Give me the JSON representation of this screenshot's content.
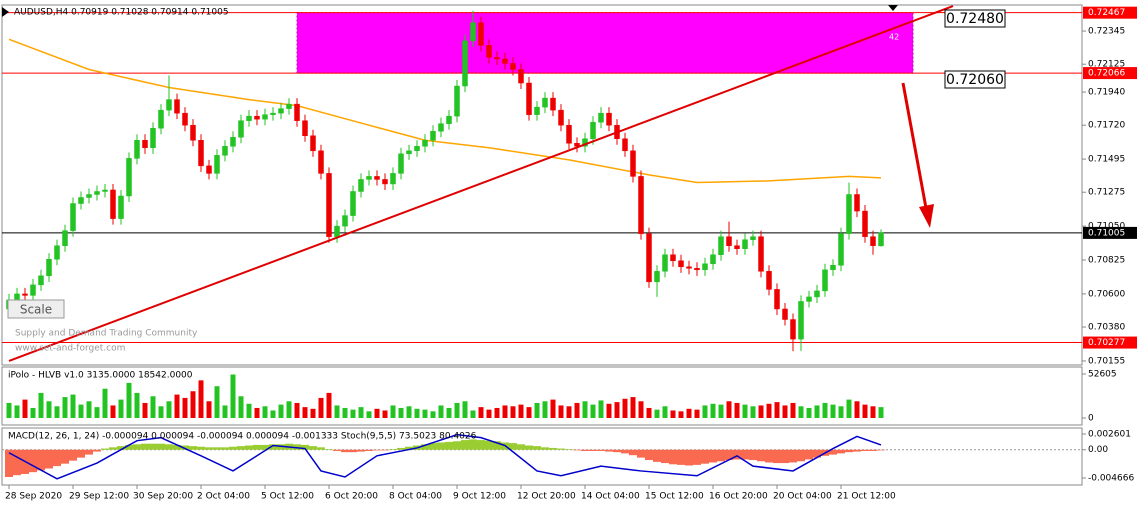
{
  "chart_data": {
    "type": "candlestick",
    "title": "AUDUSD,H4  0.70919 0.71028 0.70914 0.71005",
    "watermark": [
      "Supply and Demand Trading Community",
      "www.set-and-forget.com"
    ],
    "scale_button": "Scale",
    "up_color": "#22c322",
    "down_color": "#ee0000",
    "categories": [
      "28 Sep 2020",
      null,
      null,
      null,
      null,
      null,
      null,
      null,
      "29 Sep 12:00",
      null,
      null,
      null,
      null,
      null,
      null,
      null,
      "30 Sep 20:00",
      null,
      null,
      null,
      null,
      null,
      null,
      null,
      "2 Oct 04:00",
      null,
      null,
      null,
      null,
      null,
      null,
      null,
      "5 Oct 12:00",
      null,
      null,
      null,
      null,
      null,
      null,
      null,
      "6 Oct 20:00",
      null,
      null,
      null,
      null,
      null,
      null,
      null,
      "8 Oct 04:00",
      null,
      null,
      null,
      null,
      null,
      null,
      null,
      "9 Oct 12:00",
      null,
      null,
      null,
      null,
      null,
      null,
      null,
      "12 Oct 20:00",
      null,
      null,
      null,
      null,
      null,
      null,
      null,
      "14 Oct 04:00",
      null,
      null,
      null,
      null,
      null,
      null,
      null,
      "15 Oct 12:00",
      null,
      null,
      null,
      null,
      null,
      null,
      null,
      "16 Oct 20:00",
      null,
      null,
      null,
      null,
      null,
      null,
      null,
      "20 Oct 04:00",
      null,
      null,
      null,
      null,
      null,
      null,
      null,
      "21 Oct 12:00",
      null,
      null,
      null,
      null,
      null
    ],
    "ohlc": [
      [
        0.705,
        0.706,
        0.7046,
        0.7056
      ],
      [
        0.7056,
        0.7064,
        0.7052,
        0.706
      ],
      [
        0.706,
        0.7064,
        0.7055,
        0.7059
      ],
      [
        0.7059,
        0.707,
        0.7055,
        0.7066
      ],
      [
        0.7066,
        0.7076,
        0.7062,
        0.7072
      ],
      [
        0.7072,
        0.7087,
        0.7068,
        0.7083
      ],
      [
        0.7083,
        0.7096,
        0.7079,
        0.7092
      ],
      [
        0.7092,
        0.7106,
        0.7088,
        0.7102
      ],
      [
        0.7102,
        0.7124,
        0.7098,
        0.712
      ],
      [
        0.712,
        0.7128,
        0.7116,
        0.7124
      ],
      [
        0.7124,
        0.713,
        0.712,
        0.7126
      ],
      [
        0.7126,
        0.7132,
        0.7122,
        0.7128
      ],
      [
        0.7128,
        0.7133,
        0.7124,
        0.7129
      ],
      [
        0.7129,
        0.7133,
        0.7106,
        0.711
      ],
      [
        0.711,
        0.7129,
        0.7106,
        0.7125
      ],
      [
        0.7125,
        0.7154,
        0.7121,
        0.715
      ],
      [
        0.715,
        0.7166,
        0.7146,
        0.7162
      ],
      [
        0.7162,
        0.7166,
        0.7153,
        0.7157
      ],
      [
        0.7157,
        0.7174,
        0.7153,
        0.717
      ],
      [
        0.717,
        0.7186,
        0.7166,
        0.7182
      ],
      [
        0.7182,
        0.7205,
        0.7178,
        0.7189
      ],
      [
        0.7189,
        0.7193,
        0.7176,
        0.718
      ],
      [
        0.718,
        0.7184,
        0.7168,
        0.7172
      ],
      [
        0.7172,
        0.7176,
        0.7158,
        0.7162
      ],
      [
        0.7162,
        0.7166,
        0.7141,
        0.7145
      ],
      [
        0.7145,
        0.7149,
        0.7136,
        0.714
      ],
      [
        0.714,
        0.7156,
        0.7136,
        0.7152
      ],
      [
        0.7152,
        0.7162,
        0.7148,
        0.7158
      ],
      [
        0.7158,
        0.7168,
        0.7154,
        0.7164
      ],
      [
        0.7164,
        0.7179,
        0.716,
        0.7175
      ],
      [
        0.7175,
        0.7182,
        0.7171,
        0.7178
      ],
      [
        0.7178,
        0.7182,
        0.7172,
        0.7176
      ],
      [
        0.7176,
        0.7183,
        0.7172,
        0.7179
      ],
      [
        0.7179,
        0.7184,
        0.7175,
        0.718
      ],
      [
        0.718,
        0.7187,
        0.7176,
        0.7183
      ],
      [
        0.7183,
        0.719,
        0.7179,
        0.7186
      ],
      [
        0.7186,
        0.719,
        0.7171,
        0.7175
      ],
      [
        0.7175,
        0.7179,
        0.7161,
        0.7165
      ],
      [
        0.7165,
        0.7169,
        0.7151,
        0.7155
      ],
      [
        0.7155,
        0.7159,
        0.7136,
        0.714
      ],
      [
        0.714,
        0.7144,
        0.7094,
        0.7098
      ],
      [
        0.7098,
        0.7109,
        0.7094,
        0.7105
      ],
      [
        0.7105,
        0.7116,
        0.7101,
        0.7112
      ],
      [
        0.7112,
        0.7132,
        0.7108,
        0.7128
      ],
      [
        0.7128,
        0.714,
        0.7124,
        0.7136
      ],
      [
        0.7136,
        0.7142,
        0.7132,
        0.7138
      ],
      [
        0.7138,
        0.7142,
        0.7132,
        0.7136
      ],
      [
        0.7136,
        0.714,
        0.7129,
        0.7133
      ],
      [
        0.7133,
        0.7144,
        0.7129,
        0.714
      ],
      [
        0.714,
        0.7157,
        0.7136,
        0.7153
      ],
      [
        0.7153,
        0.7159,
        0.7149,
        0.7155
      ],
      [
        0.7155,
        0.7162,
        0.7151,
        0.7158
      ],
      [
        0.7158,
        0.7166,
        0.7154,
        0.7162
      ],
      [
        0.7162,
        0.7172,
        0.7158,
        0.7168
      ],
      [
        0.7168,
        0.7177,
        0.7164,
        0.7173
      ],
      [
        0.7173,
        0.7182,
        0.7169,
        0.7178
      ],
      [
        0.7178,
        0.7202,
        0.7174,
        0.7198
      ],
      [
        0.7198,
        0.7232,
        0.7194,
        0.7228
      ],
      [
        0.7228,
        0.7248,
        0.7224,
        0.724
      ],
      [
        0.724,
        0.7244,
        0.7221,
        0.7225
      ],
      [
        0.7225,
        0.7229,
        0.7213,
        0.7217
      ],
      [
        0.7217,
        0.7221,
        0.7212,
        0.7216
      ],
      [
        0.7216,
        0.722,
        0.7209,
        0.7213
      ],
      [
        0.7213,
        0.7217,
        0.7205,
        0.7209
      ],
      [
        0.7209,
        0.7213,
        0.7196,
        0.72
      ],
      [
        0.72,
        0.7204,
        0.7175,
        0.7179
      ],
      [
        0.7179,
        0.7188,
        0.7175,
        0.7184
      ],
      [
        0.7184,
        0.7194,
        0.718,
        0.719
      ],
      [
        0.719,
        0.7194,
        0.7178,
        0.7182
      ],
      [
        0.7182,
        0.7186,
        0.7168,
        0.7172
      ],
      [
        0.7172,
        0.7176,
        0.7156,
        0.716
      ],
      [
        0.716,
        0.7164,
        0.7154,
        0.7158
      ],
      [
        0.7158,
        0.7167,
        0.7154,
        0.7163
      ],
      [
        0.7163,
        0.7178,
        0.7159,
        0.7174
      ],
      [
        0.7174,
        0.7184,
        0.717,
        0.718
      ],
      [
        0.718,
        0.7184,
        0.7168,
        0.7172
      ],
      [
        0.7172,
        0.7176,
        0.7159,
        0.7163
      ],
      [
        0.7163,
        0.7167,
        0.7151,
        0.7155
      ],
      [
        0.7155,
        0.7159,
        0.7134,
        0.7138
      ],
      [
        0.7138,
        0.7142,
        0.7096,
        0.71
      ],
      [
        0.71,
        0.7104,
        0.7064,
        0.7068
      ],
      [
        0.7068,
        0.7079,
        0.7058,
        0.7075
      ],
      [
        0.7075,
        0.709,
        0.7071,
        0.7086
      ],
      [
        0.7086,
        0.709,
        0.7078,
        0.7082
      ],
      [
        0.7082,
        0.7086,
        0.7074,
        0.7078
      ],
      [
        0.7078,
        0.7082,
        0.7073,
        0.7077
      ],
      [
        0.7077,
        0.7081,
        0.7072,
        0.7076
      ],
      [
        0.7076,
        0.7084,
        0.7072,
        0.708
      ],
      [
        0.708,
        0.709,
        0.7076,
        0.7086
      ],
      [
        0.7086,
        0.7102,
        0.7082,
        0.7098
      ],
      [
        0.7098,
        0.7108,
        0.7088,
        0.7092
      ],
      [
        0.7092,
        0.7096,
        0.7086,
        0.709
      ],
      [
        0.709,
        0.71,
        0.7086,
        0.7096
      ],
      [
        0.7096,
        0.7102,
        0.7092,
        0.7098
      ],
      [
        0.7098,
        0.7102,
        0.7071,
        0.7075
      ],
      [
        0.7075,
        0.7079,
        0.7059,
        0.7063
      ],
      [
        0.7063,
        0.7067,
        0.7046,
        0.705
      ],
      [
        0.705,
        0.7054,
        0.7039,
        0.7043
      ],
      [
        0.7043,
        0.7047,
        0.7022,
        0.703
      ],
      [
        0.703,
        0.7059,
        0.7022,
        0.7055
      ],
      [
        0.7055,
        0.7062,
        0.7051,
        0.7058
      ],
      [
        0.7058,
        0.7066,
        0.7054,
        0.7062
      ],
      [
        0.7062,
        0.708,
        0.7058,
        0.7076
      ],
      [
        0.7076,
        0.7083,
        0.7072,
        0.7079
      ],
      [
        0.7079,
        0.7104,
        0.7075,
        0.71
      ],
      [
        0.71,
        0.7134,
        0.7096,
        0.7126
      ],
      [
        0.7126,
        0.713,
        0.7111,
        0.7115
      ],
      [
        0.7115,
        0.7119,
        0.7094,
        0.7098
      ],
      [
        0.7098,
        0.7102,
        0.7086,
        0.7092
      ],
      [
        0.70919,
        0.71028,
        0.70914,
        0.71005
      ]
    ],
    "ma": {
      "color": "#ffa500",
      "x": [
        0,
        10,
        20,
        30,
        36,
        45,
        52,
        60,
        70,
        80,
        86,
        95,
        105,
        109
      ],
      "values": [
        0.7229,
        0.7209,
        0.7197,
        0.7189,
        0.7185,
        0.7172,
        0.7162,
        0.7157,
        0.7149,
        0.7139,
        0.7134,
        0.7135,
        0.7138,
        0.7137
      ]
    },
    "ylim": [
      0.70128,
      0.72518
    ],
    "yticks": [
      0.72345,
      0.72125,
      {
        "value": 0.7194,
        "label": "0.71940"
      },
      {
        "value": 0.7172,
        "label": "0.71720"
      },
      0.71495,
      0.71275,
      {
        "value": 0.7105,
        "label": "0.71050"
      },
      0.70825,
      {
        "value": 0.706,
        "label": "0.70600"
      },
      {
        "value": 0.7038,
        "label": "0.70380"
      },
      0.70155
    ],
    "levels": [
      {
        "value": 0.72467,
        "color": "#ff0000"
      },
      {
        "value": 0.72066,
        "color": "#ff0000"
      },
      {
        "value": 0.71005,
        "color": "#000000"
      },
      {
        "value": 0.70277,
        "color": "#ff0000"
      }
    ],
    "zone": {
      "from": 36,
      "to": 113,
      "top": 0.72467,
      "bottom": 0.72066,
      "label": 42,
      "color": "#ff00ff"
    },
    "trend": {
      "color": "#e00000",
      "x": [
        0,
        118
      ],
      "values": [
        0.70155,
        0.72511
      ]
    },
    "annotations": [
      "0.72480",
      "0.72060"
    ],
    "volume": {
      "title": "iPolo - HLVB v1.0 3135.0000 18542.0000",
      "ylim": [
        -8369,
        60974
      ],
      "yticks": [
        52605,
        0
      ],
      "values": [
        18000,
        15000,
        22000,
        12000,
        30000,
        20000,
        14000,
        25000,
        28000,
        16000,
        20000,
        13000,
        35000,
        15000,
        22000,
        42000,
        30000,
        18000,
        26000,
        14000,
        20000,
        28000,
        24000,
        32000,
        45000,
        20000,
        38000,
        15000,
        52000,
        26000,
        17000,
        12000,
        14000,
        9000,
        16000,
        20000,
        18000,
        13000,
        11000,
        24000,
        30000,
        15000,
        12000,
        10000,
        13000,
        8000,
        11000,
        9000,
        15000,
        12000,
        14000,
        11000,
        10000,
        8000,
        15000,
        12000,
        18000,
        20000,
        9000,
        13000,
        10000,
        12000,
        15000,
        14000,
        16000,
        13000,
        18000,
        20000,
        22000,
        15000,
        14000,
        18000,
        20000,
        16000,
        21000,
        17000,
        19000,
        23000,
        25000,
        20000,
        12000,
        10000,
        14000,
        9000,
        8000,
        11000,
        10000,
        15000,
        17000,
        16000,
        20000,
        18000,
        16000,
        14000,
        15000,
        17000,
        19000,
        15000,
        18000,
        14000,
        12000,
        15000,
        18000,
        16000,
        14000,
        22000,
        20000,
        16000,
        14000,
        13000
      ]
    },
    "macd": {
      "title": "MACD(12, 26, 1, 24) -0.000094 0.000094 -0.000094 0.000094 -0.001333  Stoch(9,5,5) 73.5023 80.4026",
      "ylim": [
        -0.005822,
        0.003592
      ],
      "yticks": [
        0.002601,
        {
          "value": 0,
          "label": "0.00"
        },
        -0.004666
      ],
      "pos_color": "#9acd32",
      "neg_color": "#fa6a50",
      "line_color": "#0000cc",
      "values": [
        -0.0045,
        -0.0042,
        -0.004,
        -0.0037,
        -0.0034,
        -0.0031,
        -0.0027,
        -0.0023,
        -0.0018,
        -0.0013,
        -0.0008,
        -0.0003,
        0.0002,
        0.0004,
        0.0006,
        0.0008,
        0.0009,
        0.001,
        0.001,
        0.001,
        0.0009,
        0.0008,
        0.0007,
        0.0006,
        0.0005,
        0.0004,
        0.0004,
        0.0004,
        0.0005,
        0.0006,
        0.0007,
        0.0008,
        0.0008,
        0.0009,
        0.0009,
        0.001,
        0.0009,
        0.0008,
        0.0006,
        0.0004,
        0.0001,
        -0.0002,
        -0.0004,
        -0.0004,
        -0.0003,
        -0.0002,
        -0.0001,
        -0.0001,
        0.0001,
        0.0003,
        0.0005,
        0.0007,
        0.0009,
        0.0011,
        0.0012,
        0.0013,
        0.0014,
        0.0016,
        0.0017,
        0.0016,
        0.0015,
        0.0014,
        0.0012,
        0.0011,
        0.0009,
        0.0007,
        0.0006,
        0.0004,
        0.0003,
        0.0002,
        0.0001,
        -0.0001,
        -0.0002,
        -0.0002,
        -0.0002,
        -0.0003,
        -0.0004,
        -0.0006,
        -0.0009,
        -0.0013,
        -0.0017,
        -0.002,
        -0.0022,
        -0.0024,
        -0.0025,
        -0.0026,
        -0.0025,
        -0.0023,
        -0.0021,
        -0.0019,
        -0.0017,
        -0.0016,
        -0.0016,
        -0.0017,
        -0.0019,
        -0.0021,
        -0.0022,
        -0.0022,
        -0.0021,
        -0.0019,
        -0.0016,
        -0.0013,
        -0.001,
        -0.0008,
        -0.0006,
        -0.0004,
        -0.0003,
        -0.0002,
        -0.0002,
        -0.0001
      ],
      "line": {
        "x": [
          0,
          6,
          11,
          16,
          19,
          24,
          28,
          33,
          37,
          39,
          42,
          46,
          51,
          56,
          59,
          62,
          66,
          69,
          74,
          79,
          86,
          91,
          93,
          98,
          103,
          106,
          109
        ],
        "values": [
          -0.0005,
          -0.0048,
          -0.0022,
          0.0015,
          0.002,
          -0.001,
          -0.0035,
          0.0007,
          0.0002,
          -0.0035,
          -0.0045,
          -0.001,
          0.0003,
          0.0025,
          0.002,
          0.0007,
          -0.0035,
          -0.0043,
          -0.0027,
          -0.0035,
          -0.0043,
          -0.001,
          -0.0027,
          -0.0035,
          0.0002,
          0.0022,
          0.0008
        ]
      }
    }
  }
}
